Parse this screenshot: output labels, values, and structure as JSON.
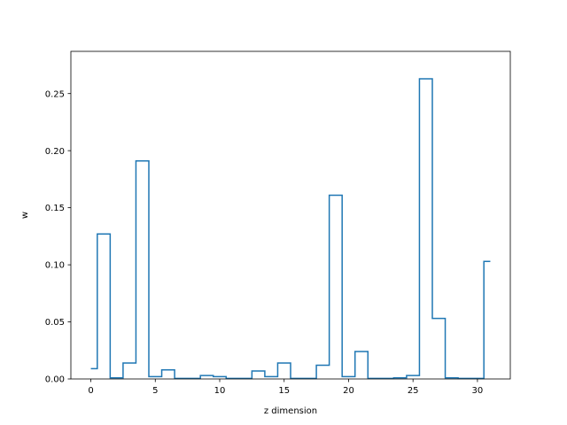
{
  "chart_data": {
    "type": "line",
    "style": "step",
    "title": "",
    "xlabel": "z dimension",
    "ylabel": "w",
    "xlim": [
      -1.55,
      32.55
    ],
    "ylim": [
      0,
      0.287
    ],
    "xticks": [
      0,
      5,
      10,
      15,
      20,
      25,
      30
    ],
    "yticks": [
      0.0,
      0.05,
      0.1,
      0.15,
      0.2,
      0.25
    ],
    "ytick_labels": [
      "0.00",
      "0.05",
      "0.10",
      "0.15",
      "0.20",
      "0.25"
    ],
    "grid": false,
    "line_color": "#1f77b4",
    "series": [
      {
        "x": [
          0,
          1,
          2,
          3,
          4,
          5,
          6,
          7,
          8,
          9,
          10,
          11,
          12,
          13,
          14,
          15,
          16,
          17,
          18,
          19,
          20,
          21,
          22,
          23,
          24,
          25,
          26,
          27,
          28,
          29,
          30,
          31
        ],
        "values": [
          0.009,
          0.127,
          0.001,
          0.014,
          0.191,
          0.002,
          0.008,
          0.0005,
          0.0005,
          0.003,
          0.002,
          0.0005,
          0.0005,
          0.007,
          0.002,
          0.014,
          0.0005,
          0.0005,
          0.012,
          0.161,
          0.002,
          0.024,
          0.0005,
          0.0005,
          0.001,
          0.003,
          0.263,
          0.053,
          0.001,
          0.0005,
          0.0005,
          0.103
        ]
      }
    ]
  }
}
